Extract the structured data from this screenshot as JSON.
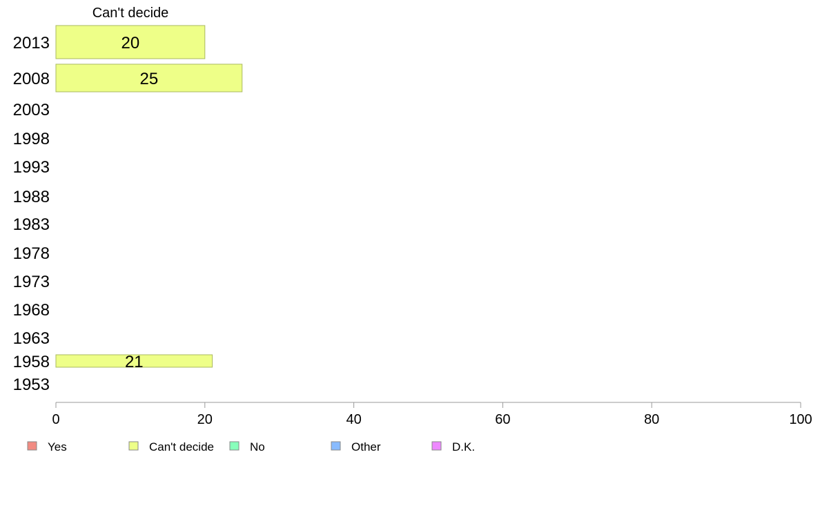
{
  "chart_data": {
    "type": "bar",
    "orientation": "horizontal",
    "column_title": "Can't decide",
    "categories": [
      "2013",
      "2008",
      "2003",
      "1998",
      "1993",
      "1988",
      "1983",
      "1978",
      "1973",
      "1968",
      "1963",
      "1958",
      "1953"
    ],
    "series": [
      {
        "name": "Yes",
        "color": "#f28b82",
        "values": [
          null,
          null,
          null,
          null,
          null,
          null,
          null,
          null,
          null,
          null,
          null,
          null,
          null
        ]
      },
      {
        "name": "Can't decide",
        "color": "#eeff88",
        "values": [
          20,
          25,
          null,
          null,
          null,
          null,
          null,
          null,
          null,
          null,
          null,
          21,
          null
        ]
      },
      {
        "name": "No",
        "color": "#88ffbb",
        "values": [
          null,
          null,
          null,
          null,
          null,
          null,
          null,
          null,
          null,
          null,
          null,
          null,
          null
        ]
      },
      {
        "name": "Other",
        "color": "#88bbff",
        "values": [
          null,
          null,
          null,
          null,
          null,
          null,
          null,
          null,
          null,
          null,
          null,
          null,
          null
        ]
      },
      {
        "name": "D.K.",
        "color": "#ee88ff",
        "values": [
          null,
          null,
          null,
          null,
          null,
          null,
          null,
          null,
          null,
          null,
          null,
          null,
          null
        ]
      }
    ],
    "xlim": [
      0,
      100
    ],
    "xticks": [
      0,
      20,
      40,
      60,
      80,
      100
    ],
    "xlabel": "",
    "ylabel": "",
    "grid": false,
    "legend_position": "bottom"
  }
}
